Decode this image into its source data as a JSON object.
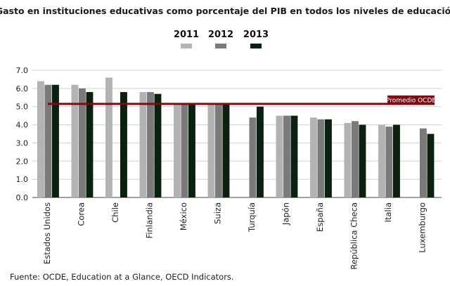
{
  "chart_data": {
    "type": "bar",
    "title": "Gasto en instituciones educativas como porcentaje del PIB en todos los niveles de educación",
    "xlabel": "",
    "ylabel": "",
    "ylim": [
      0,
      7
    ],
    "yticks": [
      "0.0",
      "1.0",
      "2.0",
      "3.0",
      "4.0",
      "5.0",
      "6.0",
      "7.0"
    ],
    "categories": [
      "Estados Unidos",
      "Corea",
      "Chile",
      "Finlandia",
      "México",
      "Suiza",
      "Turquía",
      "Japón",
      "España",
      "República Checa",
      "Italia",
      "Luxemburgo"
    ],
    "series": [
      {
        "name": "2011",
        "color": "#b3b3b3",
        "values": [
          6.4,
          6.2,
          6.6,
          5.8,
          5.2,
          5.1,
          null,
          4.5,
          4.4,
          4.1,
          4.0,
          null
        ]
      },
      {
        "name": "2012",
        "color": "#7a7a7a",
        "values": [
          6.2,
          6.0,
          null,
          5.8,
          5.2,
          5.1,
          4.4,
          4.5,
          4.3,
          4.2,
          3.9,
          3.8
        ]
      },
      {
        "name": "2013",
        "color": "#0c2010",
        "values": [
          6.2,
          5.8,
          5.8,
          5.7,
          5.2,
          5.2,
          5.0,
          4.5,
          4.3,
          4.0,
          4.0,
          3.5
        ]
      }
    ],
    "reference_line": {
      "label": "Promedio OCDE",
      "value": 5.15,
      "color": "#7a0c14"
    },
    "grid": true,
    "legend": "top-center"
  },
  "source": "Fuente: OCDE, Education at a Glance, OECD Indicators."
}
